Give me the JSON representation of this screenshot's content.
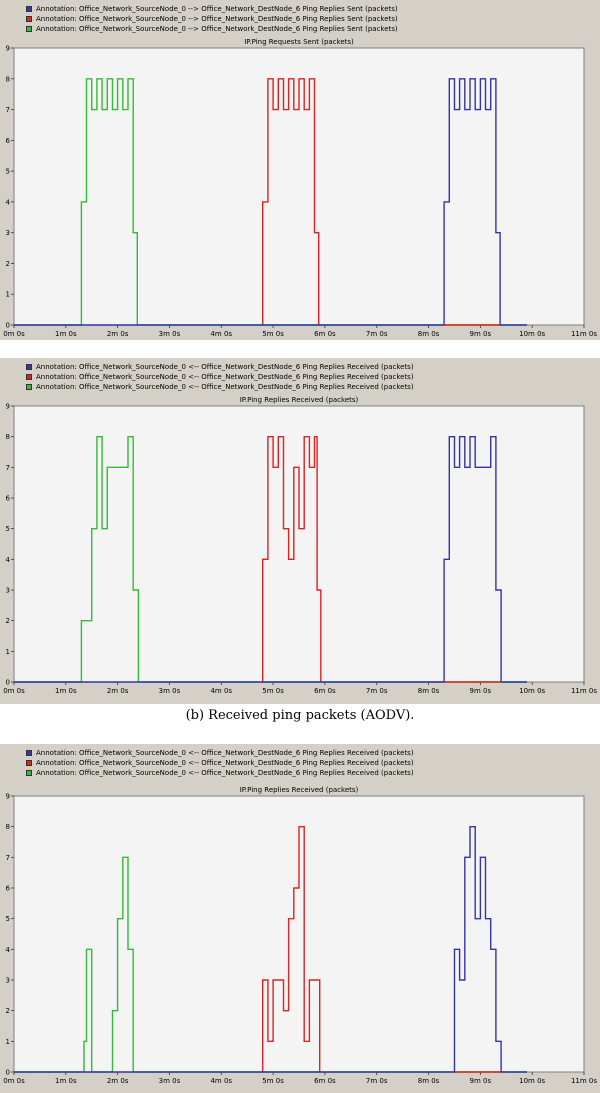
{
  "caption_b": "(b) Received ping packets (AODV).",
  "chart_data": [
    {
      "type": "line",
      "title": "IP.Ping Requests Sent (packets)",
      "legend": [
        {
          "label": "Annotation: Office_Network_SourceNode_0 --> Office_Network_DestNode_6 Ping Replies Sent (packets)",
          "color": "#3333aa"
        },
        {
          "label": "Annotation: Office_Network_SourceNode_0 --> Office_Network_DestNode_6 Ping Replies Sent (packets)",
          "color": "#dd2222"
        },
        {
          "label": "Annotation: Office_Network_SourceNode_0 --> Office_Network_DestNode_6 Ping Replies Sent (packets)",
          "color": "#33bb33"
        }
      ],
      "x_ticks": [
        "0m 0s",
        "1m 0s",
        "2m 0s",
        "3m 0s",
        "4m 0s",
        "5m 0s",
        "6m 0s",
        "7m 0s",
        "8m 0s",
        "9m 0s",
        "10m 0s",
        "11m 0s"
      ],
      "y_ticks": [
        "0",
        "1",
        "2",
        "3",
        "4",
        "5",
        "6",
        "7",
        "8",
        "9"
      ],
      "xlim": [
        0,
        11
      ],
      "ylim": [
        0,
        9
      ],
      "series": [
        {
          "color": "#33bb33",
          "points": [
            [
              0,
              0
            ],
            [
              1.3,
              0
            ],
            [
              1.3,
              4
            ],
            [
              1.4,
              4
            ],
            [
              1.4,
              8
            ],
            [
              1.5,
              8
            ],
            [
              1.5,
              7
            ],
            [
              1.6,
              7
            ],
            [
              1.6,
              8
            ],
            [
              1.7,
              8
            ],
            [
              1.7,
              7
            ],
            [
              1.8,
              7
            ],
            [
              1.8,
              8
            ],
            [
              1.9,
              8
            ],
            [
              1.9,
              7
            ],
            [
              2.0,
              7
            ],
            [
              2.0,
              8
            ],
            [
              2.1,
              8
            ],
            [
              2.1,
              7
            ],
            [
              2.2,
              7
            ],
            [
              2.2,
              8
            ],
            [
              2.3,
              8
            ],
            [
              2.3,
              3
            ],
            [
              2.38,
              3
            ],
            [
              2.38,
              0
            ],
            [
              9.9,
              0
            ]
          ]
        },
        {
          "color": "#dd2222",
          "points": [
            [
              4.8,
              0
            ],
            [
              4.8,
              4
            ],
            [
              4.9,
              4
            ],
            [
              4.9,
              8
            ],
            [
              5.0,
              8
            ],
            [
              5.0,
              7
            ],
            [
              5.1,
              7
            ],
            [
              5.1,
              8
            ],
            [
              5.2,
              8
            ],
            [
              5.2,
              7
            ],
            [
              5.3,
              7
            ],
            [
              5.3,
              8
            ],
            [
              5.4,
              8
            ],
            [
              5.4,
              7
            ],
            [
              5.5,
              7
            ],
            [
              5.5,
              8
            ],
            [
              5.6,
              8
            ],
            [
              5.6,
              7
            ],
            [
              5.7,
              7
            ],
            [
              5.7,
              8
            ],
            [
              5.8,
              8
            ],
            [
              5.8,
              3
            ],
            [
              5.88,
              3
            ],
            [
              5.88,
              0
            ]
          ]
        },
        {
          "color": "#3333aa",
          "points": [
            [
              0,
              0
            ],
            [
              8.3,
              0
            ],
            [
              8.3,
              4
            ],
            [
              8.4,
              4
            ],
            [
              8.4,
              8
            ],
            [
              8.5,
              8
            ],
            [
              8.5,
              7
            ],
            [
              8.6,
              7
            ],
            [
              8.6,
              8
            ],
            [
              8.7,
              8
            ],
            [
              8.7,
              7
            ],
            [
              8.8,
              7
            ],
            [
              8.8,
              8
            ],
            [
              8.9,
              8
            ],
            [
              8.9,
              7
            ],
            [
              9.0,
              7
            ],
            [
              9.0,
              8
            ],
            [
              9.1,
              8
            ],
            [
              9.1,
              7
            ],
            [
              9.2,
              7
            ],
            [
              9.2,
              8
            ],
            [
              9.3,
              8
            ],
            [
              9.3,
              3
            ],
            [
              9.38,
              3
            ],
            [
              9.38,
              0
            ],
            [
              9.9,
              0
            ]
          ]
        },
        {
          "color": "#dd2222",
          "points": [
            [
              8.3,
              0
            ],
            [
              9.38,
              0
            ]
          ]
        }
      ]
    },
    {
      "type": "line",
      "title": "IP.Ping Replies Received (packets)",
      "legend": [
        {
          "label": "Annotation: Office_Network_SourceNode_0 <-- Office_Network_DestNode_6 Ping Replies Received (packets)",
          "color": "#3333aa"
        },
        {
          "label": "Annotation: Office_Network_SourceNode_0 <-- Office_Network_DestNode_6 Ping Replies Received (packets)",
          "color": "#dd2222"
        },
        {
          "label": "Annotation: Office_Network_SourceNode_0 <-- Office_Network_DestNode_6 Ping Replies Received (packets)",
          "color": "#33bb33"
        }
      ],
      "x_ticks": [
        "0m 0s",
        "1m 0s",
        "2m 0s",
        "3m 0s",
        "4m 0s",
        "5m 0s",
        "6m 0s",
        "7m 0s",
        "8m 0s",
        "9m 0s",
        "10m 0s",
        "11m 0s"
      ],
      "y_ticks": [
        "0",
        "1",
        "2",
        "3",
        "4",
        "5",
        "6",
        "7",
        "8",
        "9"
      ],
      "xlim": [
        0,
        11
      ],
      "ylim": [
        0,
        9
      ],
      "series": [
        {
          "color": "#33bb33",
          "points": [
            [
              0,
              0
            ],
            [
              1.3,
              0
            ],
            [
              1.3,
              2
            ],
            [
              1.5,
              2
            ],
            [
              1.5,
              5
            ],
            [
              1.6,
              5
            ],
            [
              1.6,
              8
            ],
            [
              1.7,
              8
            ],
            [
              1.7,
              5
            ],
            [
              1.8,
              5
            ],
            [
              1.8,
              7
            ],
            [
              2.2,
              7
            ],
            [
              2.2,
              8
            ],
            [
              2.3,
              8
            ],
            [
              2.3,
              3
            ],
            [
              2.4,
              3
            ],
            [
              2.4,
              0
            ],
            [
              9.9,
              0
            ]
          ]
        },
        {
          "color": "#dd2222",
          "points": [
            [
              4.8,
              0
            ],
            [
              4.8,
              4
            ],
            [
              4.9,
              4
            ],
            [
              4.9,
              8
            ],
            [
              5.0,
              8
            ],
            [
              5.0,
              7
            ],
            [
              5.1,
              7
            ],
            [
              5.1,
              8
            ],
            [
              5.2,
              8
            ],
            [
              5.2,
              5
            ],
            [
              5.3,
              5
            ],
            [
              5.3,
              4
            ],
            [
              5.4,
              4
            ],
            [
              5.4,
              7
            ],
            [
              5.5,
              7
            ],
            [
              5.5,
              5
            ],
            [
              5.6,
              5
            ],
            [
              5.6,
              8
            ],
            [
              5.7,
              8
            ],
            [
              5.7,
              7
            ],
            [
              5.8,
              7
            ],
            [
              5.8,
              8
            ],
            [
              5.85,
              8
            ],
            [
              5.85,
              3
            ],
            [
              5.92,
              3
            ],
            [
              5.92,
              0
            ]
          ]
        },
        {
          "color": "#3333aa",
          "points": [
            [
              0,
              0
            ],
            [
              8.3,
              0
            ],
            [
              8.3,
              4
            ],
            [
              8.4,
              4
            ],
            [
              8.4,
              8
            ],
            [
              8.5,
              8
            ],
            [
              8.5,
              7
            ],
            [
              8.6,
              7
            ],
            [
              8.6,
              8
            ],
            [
              8.7,
              8
            ],
            [
              8.7,
              7
            ],
            [
              8.8,
              7
            ],
            [
              8.8,
              8
            ],
            [
              8.9,
              8
            ],
            [
              8.9,
              7
            ],
            [
              9.2,
              7
            ],
            [
              9.2,
              8
            ],
            [
              9.3,
              8
            ],
            [
              9.3,
              3
            ],
            [
              9.4,
              3
            ],
            [
              9.4,
              0
            ],
            [
              9.9,
              0
            ]
          ]
        },
        {
          "color": "#dd2222",
          "points": [
            [
              8.3,
              0
            ],
            [
              9.4,
              0
            ]
          ]
        }
      ]
    },
    {
      "type": "line",
      "title": "IP.Ping Replies Received (packets)",
      "legend": [
        {
          "label": "Annotation: Office_Network_SourceNode_0 <-- Office_Network_DestNode_6 Ping Replies Received (packets)",
          "color": "#3333aa"
        },
        {
          "label": "Annotation: Office_Network_SourceNode_0 <-- Office_Network_DestNode_6 Ping Replies Received (packets)",
          "color": "#dd2222"
        },
        {
          "label": "Annotation: Office_Network_SourceNode_0 <-- Office_Network_DestNode_6 Ping Replies Received (packets)",
          "color": "#33bb33"
        }
      ],
      "x_ticks": [
        "0m 0s",
        "1m 0s",
        "2m 0s",
        "3m 0s",
        "4m 0s",
        "5m 0s",
        "6m 0s",
        "7m 0s",
        "8m 0s",
        "9m 0s",
        "10m 0s",
        "11m 0s"
      ],
      "y_ticks": [
        "0",
        "1",
        "2",
        "3",
        "4",
        "5",
        "6",
        "7",
        "8",
        "9"
      ],
      "xlim": [
        0,
        11
      ],
      "ylim": [
        0,
        9
      ],
      "series": [
        {
          "color": "#33bb33",
          "points": [
            [
              0,
              0
            ],
            [
              1.35,
              0
            ],
            [
              1.35,
              1
            ],
            [
              1.4,
              1
            ],
            [
              1.4,
              4
            ],
            [
              1.5,
              4
            ],
            [
              1.5,
              0
            ],
            [
              1.9,
              0
            ],
            [
              1.9,
              2
            ],
            [
              2.0,
              2
            ],
            [
              2.0,
              5
            ],
            [
              2.1,
              5
            ],
            [
              2.1,
              7
            ],
            [
              2.2,
              7
            ],
            [
              2.2,
              4
            ],
            [
              2.3,
              4
            ],
            [
              2.3,
              0
            ],
            [
              9.9,
              0
            ]
          ]
        },
        {
          "color": "#dd2222",
          "points": [
            [
              4.8,
              0
            ],
            [
              4.8,
              3
            ],
            [
              4.9,
              3
            ],
            [
              4.9,
              1
            ],
            [
              5.0,
              1
            ],
            [
              5.0,
              3
            ],
            [
              5.2,
              3
            ],
            [
              5.2,
              2
            ],
            [
              5.3,
              2
            ],
            [
              5.3,
              5
            ],
            [
              5.4,
              5
            ],
            [
              5.4,
              6
            ],
            [
              5.5,
              6
            ],
            [
              5.5,
              8
            ],
            [
              5.6,
              8
            ],
            [
              5.6,
              1
            ],
            [
              5.7,
              1
            ],
            [
              5.7,
              3
            ],
            [
              5.9,
              3
            ],
            [
              5.9,
              0
            ]
          ]
        },
        {
          "color": "#3333aa",
          "points": [
            [
              0,
              0
            ],
            [
              8.5,
              0
            ],
            [
              8.5,
              4
            ],
            [
              8.6,
              4
            ],
            [
              8.6,
              3
            ],
            [
              8.7,
              3
            ],
            [
              8.7,
              7
            ],
            [
              8.8,
              7
            ],
            [
              8.8,
              8
            ],
            [
              8.9,
              8
            ],
            [
              8.9,
              5
            ],
            [
              9.0,
              5
            ],
            [
              9.0,
              7
            ],
            [
              9.1,
              7
            ],
            [
              9.1,
              5
            ],
            [
              9.2,
              5
            ],
            [
              9.2,
              4
            ],
            [
              9.3,
              4
            ],
            [
              9.3,
              1
            ],
            [
              9.4,
              1
            ],
            [
              9.4,
              0
            ],
            [
              9.9,
              0
            ]
          ]
        },
        {
          "color": "#dd2222",
          "points": [
            [
              8.5,
              0
            ],
            [
              9.4,
              0
            ]
          ]
        }
      ]
    }
  ]
}
